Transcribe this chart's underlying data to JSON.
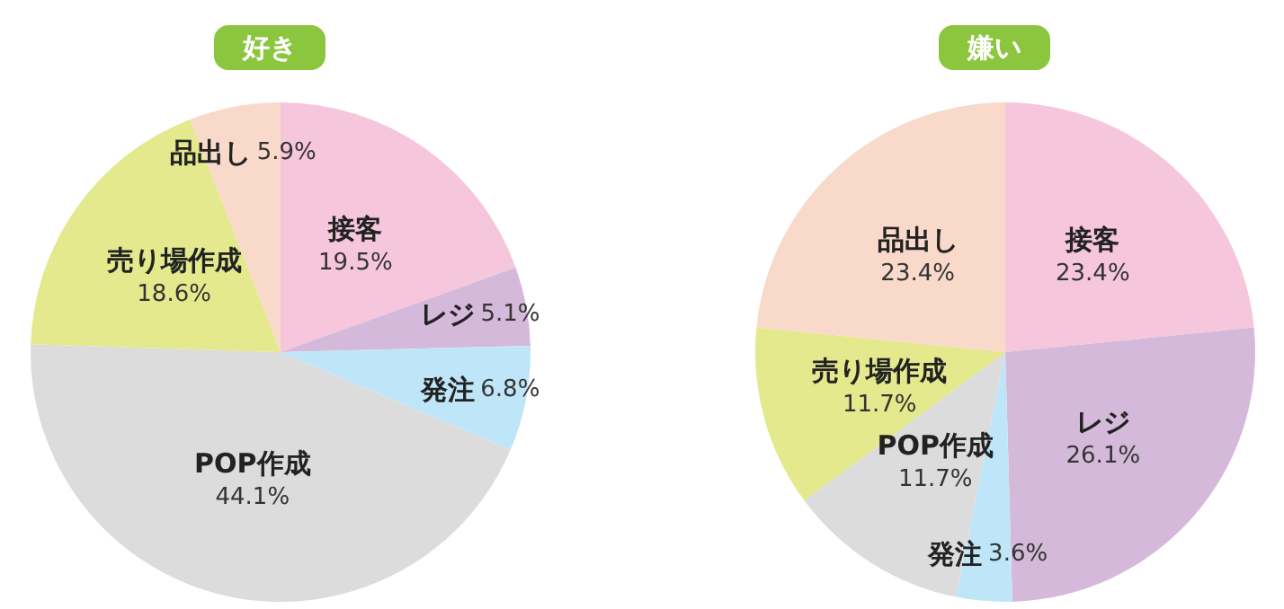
{
  "chart_data": [
    {
      "type": "pie",
      "title": "好き",
      "categories": [
        "接客",
        "レジ",
        "発注",
        "POP作成",
        "売り場作成",
        "品出し"
      ],
      "values": [
        19.5,
        5.1,
        6.8,
        44.1,
        18.6,
        5.9
      ],
      "colors": [
        "#f6c6dc",
        "#d5b9da",
        "#bfe6f8",
        "#dcdcdc",
        "#e3e98c",
        "#f9d9c9"
      ],
      "value_labels": [
        "19.5%",
        "5.1%",
        "6.8%",
        "44.1%",
        "18.6%",
        "5.9%"
      ]
    },
    {
      "type": "pie",
      "title": "嫌い",
      "categories": [
        "接客",
        "レジ",
        "発注",
        "POP作成",
        "売り場作成",
        "品出し"
      ],
      "values": [
        23.4,
        26.1,
        3.6,
        11.7,
        11.7,
        23.4
      ],
      "colors": [
        "#f6c6dc",
        "#d5b9da",
        "#bfe6f8",
        "#dcdcdc",
        "#e3e98c",
        "#f9d9c9"
      ],
      "value_labels": [
        "23.4%",
        "26.1%",
        "3.6%",
        "11.7%",
        "11.7%",
        "23.4%"
      ]
    }
  ]
}
